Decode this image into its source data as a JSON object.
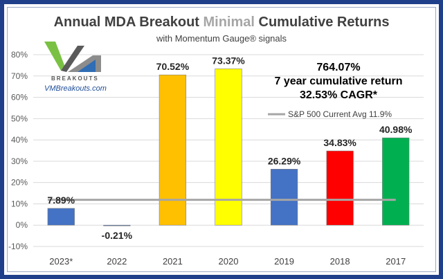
{
  "colors": {
    "frame": "#1f3f8a",
    "title_main": "#404040",
    "title_accent": "#a6a6a6",
    "grid": "#d9d9d9",
    "avg_line": "#a6a6a6"
  },
  "logo": {
    "letters": "VM",
    "tagline": "BREAKOUTS",
    "site": "VMBreakouts.com"
  },
  "summary": {
    "line1": "764.07%",
    "line2": "7 year cumulative return",
    "line3": "32.53% CAGR*"
  },
  "chart_data": {
    "type": "bar",
    "title_parts": [
      "Annual MDA Breakout ",
      "Minimal",
      " Cumulative Returns"
    ],
    "subtitle": "with Momentum Gauge® signals",
    "categories": [
      "2023*",
      "2022",
      "2021",
      "2020",
      "2019",
      "2018",
      "2017"
    ],
    "values": [
      7.89,
      -0.21,
      70.52,
      73.37,
      26.29,
      34.83,
      40.98
    ],
    "value_labels": [
      "7.89%",
      "-0.21%",
      "70.52%",
      "73.37%",
      "26.29%",
      "34.83%",
      "40.98%"
    ],
    "bar_colors": [
      "#4472c4",
      "#4472c4",
      "#ffc000",
      "#ffff00",
      "#4472c4",
      "#ff0000",
      "#00b050"
    ],
    "ylim": [
      -10,
      80
    ],
    "yticks": [
      -10,
      0,
      10,
      20,
      30,
      40,
      50,
      60,
      70,
      80
    ],
    "ytick_labels": [
      "-10%",
      "0%",
      "10%",
      "20%",
      "30%",
      "40%",
      "50%",
      "60%",
      "70%",
      "80%"
    ],
    "grid": "horizontal",
    "reference_line": {
      "label": "S&P 500 Current Avg 11.9%",
      "value": 11.9
    },
    "legend_placement": "top-right"
  }
}
